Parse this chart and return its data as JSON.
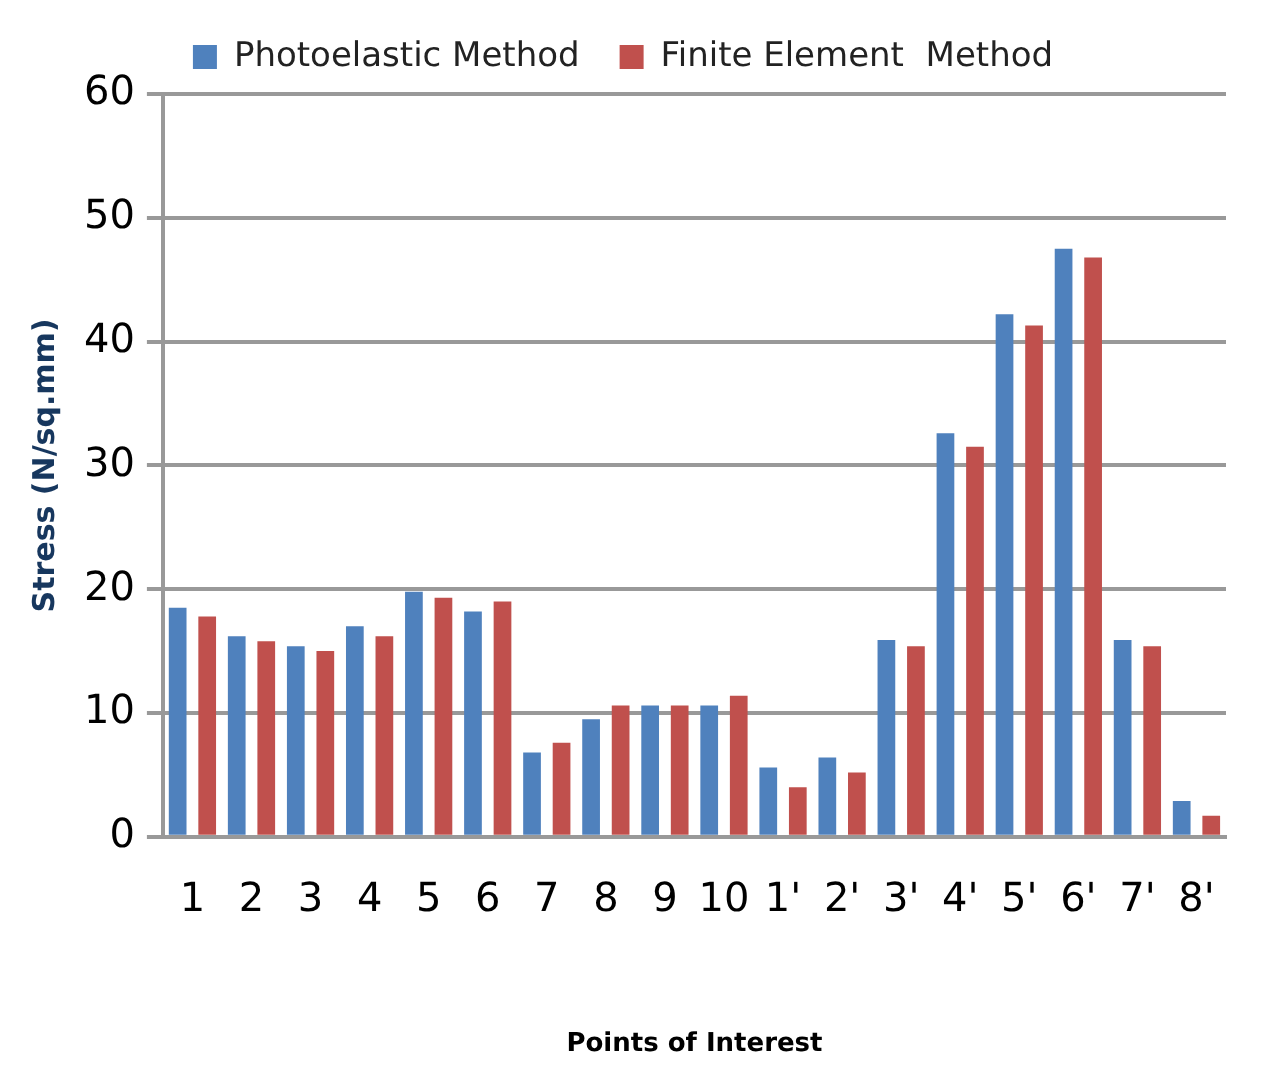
{
  "chart_data": {
    "type": "bar",
    "xlabel": "Points of Interest",
    "ylabel": "Stress (N/sq.mm)",
    "categories": [
      "1",
      "2",
      "3",
      "4",
      "5",
      "6",
      "7",
      "8",
      "9",
      "10",
      "1'",
      "2'",
      "3'",
      "4'",
      "5'",
      "6'",
      "7'",
      "8'"
    ],
    "series": [
      {
        "name": "Photoelastic Method",
        "color": "#4f81bd",
        "values": [
          18.5,
          16.2,
          15.4,
          17.0,
          19.8,
          18.2,
          6.8,
          9.5,
          10.6,
          10.6,
          5.6,
          6.4,
          15.9,
          32.6,
          42.2,
          47.5,
          15.9,
          2.9
        ]
      },
      {
        "name": "Finite Element  Method",
        "color": "#c0504d",
        "values": [
          17.8,
          15.8,
          15.0,
          16.2,
          19.3,
          19.0,
          7.6,
          10.6,
          10.6,
          11.4,
          4.0,
          5.2,
          15.4,
          31.5,
          41.3,
          46.8,
          15.4,
          1.7
        ]
      }
    ],
    "ylim": [
      0,
      60
    ],
    "yticks": [
      0,
      10,
      20,
      30,
      40,
      50,
      60
    ],
    "grid": "y",
    "legend": "top"
  }
}
